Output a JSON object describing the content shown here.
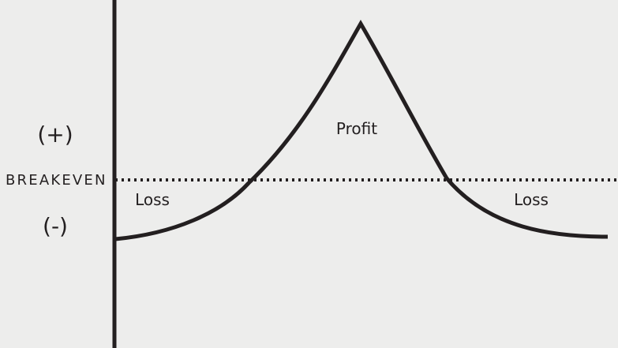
{
  "labels": {
    "positive": "(+)",
    "negative": "(-)",
    "breakeven": "BREAKEVEN",
    "profit": "Profit",
    "loss_left": "Loss",
    "loss_right": "Loss"
  },
  "colors": {
    "background": "#ededec",
    "line": "#231f20"
  }
}
